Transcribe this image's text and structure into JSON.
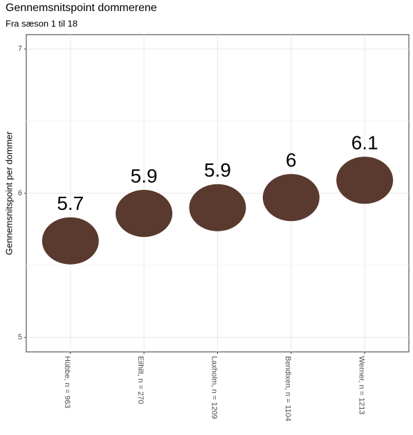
{
  "chart_data": {
    "type": "point",
    "title": "Gennemsnitspoint dommerene",
    "subtitle": "Fra sæson 1 til 18",
    "y_label": "Gennemsnitspoint per dommer",
    "categories": [
      "Hübbe, n = 963",
      "Eilhilt, n = 270",
      "Laxholm, n = 1209",
      "Bendixen, n = 1104",
      "Werner, n = 1213"
    ],
    "values": [
      5.67,
      5.86,
      5.9,
      5.97,
      6.09
    ],
    "value_labels": [
      "5.7",
      "5.9",
      "5.9",
      "6",
      "6.1"
    ],
    "color": "#5a3a2e",
    "ylim": [
      4.9,
      7.1
    ],
    "yticks": [
      5,
      6,
      7
    ],
    "minor_yticks": [
      5.5,
      6.5
    ],
    "grid": true
  }
}
